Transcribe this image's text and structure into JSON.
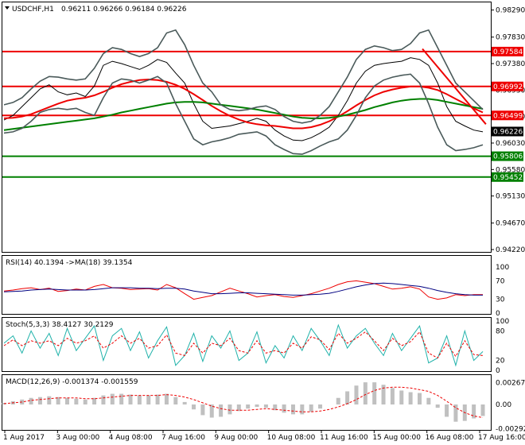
{
  "header": {
    "symbol": "USDCHF,H1",
    "ohlc": "0.96211 0.96266 0.96184 0.96226"
  },
  "chart_data": [
    {
      "type": "line",
      "panel": "price",
      "ylim": [
        0.9418,
        0.9842
      ],
      "y_ticks": [
        "0.98290",
        "0.97830",
        "0.97380",
        "0.96930",
        "0.96480",
        "0.96030",
        "0.95580",
        "0.95130",
        "0.94670",
        "0.94220"
      ],
      "x_ticks": [
        "1 Aug 2017",
        "3 Aug 00:00",
        "4 Aug 08:00",
        "7 Aug 16:00",
        "9 Aug 00:00",
        "10 Aug 08:00",
        "11 Aug 16:00",
        "15 Aug 00:00",
        "16 Aug 08:00",
        "17 Aug 16:00"
      ],
      "current_price": "0.96226",
      "levels": [
        {
          "value": 0.97584,
          "label": "0.97584",
          "color": "#ee0000"
        },
        {
          "value": 0.96992,
          "label": "0.96992",
          "color": "#ee0000"
        },
        {
          "value": 0.96499,
          "label": "0.96499",
          "color": "#ee0000"
        },
        {
          "value": 0.95806,
          "label": "0.95806",
          "color": "#008000"
        },
        {
          "value": 0.95452,
          "label": "0.95452",
          "color": "#008000"
        }
      ],
      "trendline": {
        "from": [
          0.86,
          0.9763
        ],
        "to": [
          0.99,
          0.9635
        ],
        "color": "#ee0000"
      },
      "series": [
        {
          "role": "price",
          "color": "#000000",
          "values": [
            0.9642,
            0.965,
            0.9665,
            0.968,
            0.9695,
            0.9702,
            0.969,
            0.9685,
            0.9688,
            0.9682,
            0.97,
            0.9735,
            0.9742,
            0.9738,
            0.9733,
            0.9728,
            0.9735,
            0.9745,
            0.974,
            0.9722,
            0.9705,
            0.967,
            0.964,
            0.9628,
            0.963,
            0.9632,
            0.9636,
            0.964,
            0.9645,
            0.964,
            0.9625,
            0.9615,
            0.9608,
            0.9607,
            0.9612,
            0.962,
            0.963,
            0.965,
            0.9675,
            0.9705,
            0.9725,
            0.9735,
            0.9738,
            0.974,
            0.9742,
            0.9748,
            0.9745,
            0.9735,
            0.9705,
            0.9665,
            0.964,
            0.9632,
            0.9625,
            0.9622
          ]
        },
        {
          "role": "ma-fast",
          "color": "#ee0000",
          "values": [
            0.9645,
            0.9646,
            0.9648,
            0.9652,
            0.9658,
            0.9664,
            0.967,
            0.9675,
            0.9678,
            0.968,
            0.9684,
            0.969,
            0.9697,
            0.9703,
            0.9707,
            0.971,
            0.9711,
            0.971,
            0.9707,
            0.9702,
            0.9695,
            0.9686,
            0.9676,
            0.9666,
            0.9657,
            0.9649,
            0.9643,
            0.9638,
            0.9635,
            0.9633,
            0.9632,
            0.963,
            0.9628,
            0.9628,
            0.963,
            0.9634,
            0.964,
            0.9648,
            0.9657,
            0.9667,
            0.9676,
            0.9684,
            0.969,
            0.9694,
            0.9697,
            0.9699,
            0.9699,
            0.9697,
            0.9693,
            0.9686,
            0.9678,
            0.967,
            0.9662,
            0.9655
          ]
        },
        {
          "role": "ma-slow",
          "color": "#008000",
          "values": [
            0.9625,
            0.9627,
            0.9629,
            0.9631,
            0.9633,
            0.9635,
            0.9637,
            0.9639,
            0.9641,
            0.9643,
            0.9645,
            0.9648,
            0.9651,
            0.9655,
            0.9658,
            0.9661,
            0.9664,
            0.9667,
            0.967,
            0.9672,
            0.9673,
            0.9673,
            0.9672,
            0.967,
            0.9668,
            0.9666,
            0.9664,
            0.9662,
            0.966,
            0.9657,
            0.9654,
            0.9651,
            0.9648,
            0.9646,
            0.9645,
            0.9645,
            0.9646,
            0.9648,
            0.9651,
            0.9655,
            0.9659,
            0.9664,
            0.9668,
            0.9672,
            0.9675,
            0.9677,
            0.9678,
            0.9678,
            0.9676,
            0.9673,
            0.967,
            0.9667,
            0.9664,
            0.9661
          ]
        },
        {
          "role": "band-upper",
          "color": "#4a5a5a",
          "values": [
            0.9668,
            0.9672,
            0.968,
            0.9695,
            0.9708,
            0.9716,
            0.9715,
            0.9712,
            0.971,
            0.9712,
            0.973,
            0.9755,
            0.9765,
            0.9762,
            0.9755,
            0.975,
            0.9755,
            0.9765,
            0.979,
            0.9795,
            0.977,
            0.9735,
            0.9705,
            0.969,
            0.9668,
            0.966,
            0.9658,
            0.966,
            0.9664,
            0.9666,
            0.966,
            0.9648,
            0.964,
            0.9637,
            0.964,
            0.965,
            0.9665,
            0.969,
            0.9715,
            0.9745,
            0.9762,
            0.9768,
            0.9765,
            0.976,
            0.9762,
            0.9772,
            0.979,
            0.9795,
            0.9765,
            0.9735,
            0.9705,
            0.969,
            0.9675,
            0.966
          ]
        },
        {
          "role": "band-lower",
          "color": "#4a5a5a",
          "values": [
            0.962,
            0.9622,
            0.9628,
            0.964,
            0.9655,
            0.966,
            0.9662,
            0.966,
            0.9662,
            0.9655,
            0.965,
            0.968,
            0.9705,
            0.9712,
            0.971,
            0.9705,
            0.971,
            0.9716,
            0.9705,
            0.967,
            0.964,
            0.961,
            0.96,
            0.9605,
            0.9608,
            0.9612,
            0.9618,
            0.962,
            0.9622,
            0.9615,
            0.96,
            0.9592,
            0.9585,
            0.9584,
            0.959,
            0.9598,
            0.9605,
            0.961,
            0.9625,
            0.965,
            0.968,
            0.97,
            0.971,
            0.9715,
            0.9718,
            0.972,
            0.9705,
            0.967,
            0.963,
            0.96,
            0.959,
            0.9592,
            0.9595,
            0.96
          ]
        }
      ]
    },
    {
      "type": "line",
      "panel": "rsi",
      "label": "RSI(14) 40.1394 ->MA(18) 39.1354",
      "ylim": [
        0,
        100
      ],
      "y_ticks": [
        "100",
        "70",
        "30",
        "0"
      ],
      "series": [
        {
          "role": "rsi",
          "color": "#ee0000",
          "values": [
            48,
            50,
            53,
            55,
            51,
            54,
            47,
            49,
            52,
            50,
            58,
            62,
            55,
            54,
            51,
            52,
            53,
            50,
            62,
            55,
            42,
            30,
            34,
            38,
            46,
            54,
            48,
            42,
            35,
            38,
            40,
            36,
            34,
            38,
            42,
            48,
            54,
            62,
            68,
            70,
            67,
            64,
            58,
            52,
            54,
            57,
            52,
            35,
            30,
            33,
            40,
            38,
            40,
            40
          ]
        },
        {
          "role": "rsi-ma",
          "color": "#000080",
          "values": [
            46,
            47,
            48,
            50,
            51,
            52,
            51,
            50,
            50,
            50,
            51,
            53,
            55,
            55,
            55,
            54,
            54,
            53,
            54,
            54,
            52,
            48,
            45,
            42,
            42,
            43,
            44,
            44,
            43,
            42,
            41,
            40,
            39,
            39,
            40,
            41,
            43,
            47,
            52,
            57,
            61,
            64,
            65,
            64,
            62,
            60,
            58,
            54,
            49,
            45,
            42,
            40,
            39,
            39
          ]
        }
      ]
    },
    {
      "type": "line",
      "panel": "stochastic",
      "label": "Stoch(5,3,3) 38.4127 30.2129",
      "ylim": [
        0,
        100
      ],
      "y_ticks": [
        "100",
        "80",
        "20",
        "0"
      ],
      "series": [
        {
          "role": "main",
          "color": "#20b2aa",
          "values": [
            55,
            70,
            35,
            80,
            45,
            75,
            30,
            85,
            40,
            65,
            90,
            20,
            70,
            85,
            40,
            78,
            25,
            60,
            88,
            10,
            30,
            75,
            18,
            70,
            45,
            80,
            20,
            35,
            78,
            15,
            50,
            25,
            70,
            40,
            85,
            60,
            30,
            92,
            45,
            70,
            85,
            55,
            30,
            75,
            40,
            65,
            90,
            15,
            25,
            70,
            10,
            80,
            20,
            38
          ]
        },
        {
          "role": "signal",
          "color": "#ee0000",
          "values": [
            50,
            62,
            50,
            60,
            55,
            60,
            50,
            65,
            55,
            60,
            70,
            45,
            55,
            70,
            55,
            65,
            45,
            50,
            72,
            35,
            30,
            55,
            35,
            55,
            50,
            65,
            40,
            35,
            60,
            35,
            40,
            35,
            55,
            45,
            68,
            62,
            42,
            75,
            55,
            65,
            78,
            60,
            40,
            65,
            50,
            58,
            78,
            35,
            25,
            55,
            28,
            60,
            32,
            30
          ]
        }
      ]
    },
    {
      "type": "bar",
      "panel": "macd",
      "label": "MACD(12,26,9) -0.001374 -0.001559",
      "ylim": [
        -0.003,
        0.003
      ],
      "y_ticks": [
        "0.002672",
        "0.00",
        "-0.002928"
      ],
      "series": [
        {
          "role": "histogram",
          "color": "#c0c0c0",
          "values": [
            0.0002,
            0.0004,
            0.0006,
            0.0008,
            0.0009,
            0.001,
            0.0009,
            0.0008,
            0.0007,
            0.0006,
            0.0008,
            0.0011,
            0.0013,
            0.0013,
            0.0012,
            0.0011,
            0.0011,
            0.0012,
            0.0013,
            0.0009,
            0.0003,
            -0.0006,
            -0.0013,
            -0.0016,
            -0.0015,
            -0.0012,
            -0.0008,
            -0.0005,
            -0.0003,
            -0.0004,
            -0.0007,
            -0.001,
            -0.0012,
            -0.0012,
            -0.0009,
            -0.0005,
            0.0,
            0.0008,
            0.0016,
            0.0023,
            0.0027,
            0.0027,
            0.0024,
            0.002,
            0.0017,
            0.0015,
            0.0014,
            0.0008,
            -0.0004,
            -0.0015,
            -0.0021,
            -0.002,
            -0.0017,
            -0.0014
          ]
        },
        {
          "role": "signal",
          "color": "#ee0000",
          "values": [
            0.0001,
            0.0002,
            0.0003,
            0.0005,
            0.0006,
            0.0007,
            0.0008,
            0.0008,
            0.0008,
            0.0007,
            0.0007,
            0.0008,
            0.0009,
            0.001,
            0.0011,
            0.0011,
            0.0011,
            0.0011,
            0.0012,
            0.0011,
            0.0009,
            0.0006,
            0.0002,
            -0.0002,
            -0.0005,
            -0.0007,
            -0.0007,
            -0.0007,
            -0.0006,
            -0.0005,
            -0.0006,
            -0.0007,
            -0.0008,
            -0.0009,
            -0.0009,
            -0.0008,
            -0.0006,
            -0.0003,
            0.0001,
            0.0006,
            0.0012,
            0.0017,
            0.002,
            0.0021,
            0.0021,
            0.002,
            0.0018,
            0.0016,
            0.0011,
            0.0004,
            -0.0004,
            -0.001,
            -0.0014,
            -0.0016
          ]
        }
      ]
    }
  ]
}
